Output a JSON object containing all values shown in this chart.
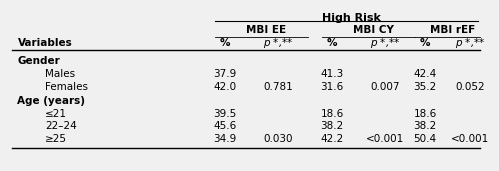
{
  "title": "High Risk",
  "bg_color": "#f0f0f0",
  "text_color": "#000000",
  "font_size": 7.5,
  "rows": [
    {
      "label": "Gender",
      "indent": 0,
      "ee_pct": "",
      "ee_p": "",
      "cy_pct": "",
      "cy_p": "",
      "ref_pct": "",
      "ref_p": "",
      "is_section": true
    },
    {
      "label": "Males",
      "indent": 1,
      "ee_pct": "37.9",
      "ee_p": "",
      "cy_pct": "41.3",
      "cy_p": "",
      "ref_pct": "42.4",
      "ref_p": "",
      "is_section": false
    },
    {
      "label": "Females",
      "indent": 1,
      "ee_pct": "42.0",
      "ee_p": "0.781",
      "cy_pct": "31.6",
      "cy_p": "0.007",
      "ref_pct": "35.2",
      "ref_p": "0.052",
      "is_section": false
    },
    {
      "label": "Age (years)",
      "indent": 0,
      "ee_pct": "",
      "ee_p": "",
      "cy_pct": "",
      "cy_p": "",
      "ref_pct": "",
      "ref_p": "",
      "is_section": true
    },
    {
      "label": "≤21",
      "indent": 1,
      "ee_pct": "39.5",
      "ee_p": "",
      "cy_pct": "18.6",
      "cy_p": "",
      "ref_pct": "18.6",
      "ref_p": "",
      "is_section": false
    },
    {
      "label": "22–24",
      "indent": 1,
      "ee_pct": "45.6",
      "ee_p": "",
      "cy_pct": "38.2",
      "cy_p": "",
      "ref_pct": "38.2",
      "ref_p": "",
      "is_section": false
    },
    {
      "label": "≥25",
      "indent": 1,
      "ee_pct": "34.9",
      "ee_p": "0.030",
      "cy_pct": "42.2",
      "cy_p": "<0.001",
      "ref_pct": "50.4",
      "ref_p": "<0.001",
      "is_section": false
    }
  ]
}
